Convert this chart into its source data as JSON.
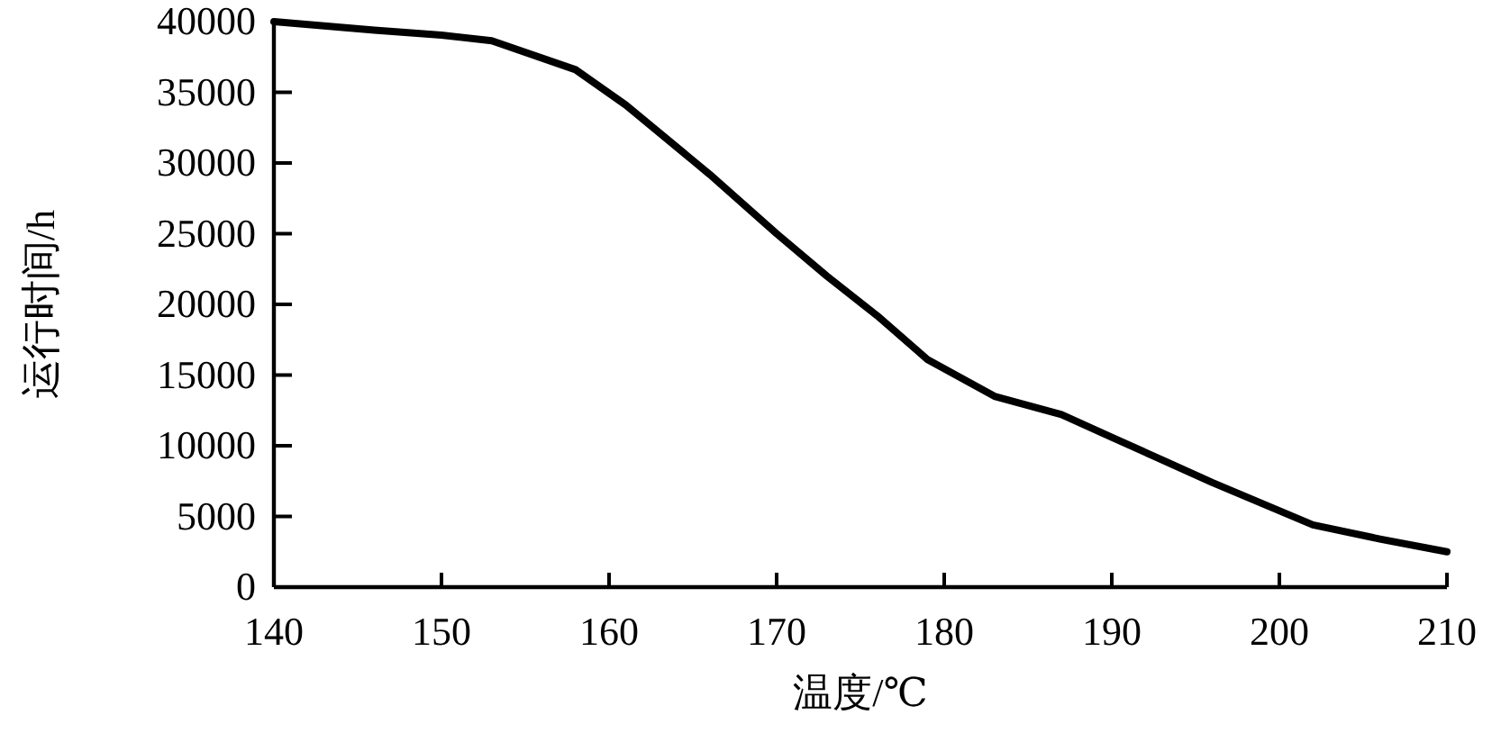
{
  "chart_data": {
    "type": "line",
    "xlabel": "温度/℃",
    "ylabel": "运行时间/h",
    "x": [
      140,
      146,
      150,
      153,
      158,
      161,
      166,
      170,
      173,
      176,
      179,
      183,
      187,
      190,
      196,
      202,
      206,
      210
    ],
    "values": [
      40000,
      39400,
      39050,
      38650,
      36600,
      34100,
      29200,
      25000,
      22000,
      19200,
      16100,
      13500,
      12200,
      10600,
      7400,
      4400,
      3400,
      2500
    ],
    "color": "#000000",
    "xlim": [
      140,
      210
    ],
    "ylim": [
      0,
      40000
    ],
    "xticks": [
      140,
      150,
      160,
      170,
      180,
      190,
      200,
      210
    ],
    "yticks": [
      0,
      5000,
      10000,
      15000,
      20000,
      25000,
      30000,
      35000,
      40000
    ]
  }
}
